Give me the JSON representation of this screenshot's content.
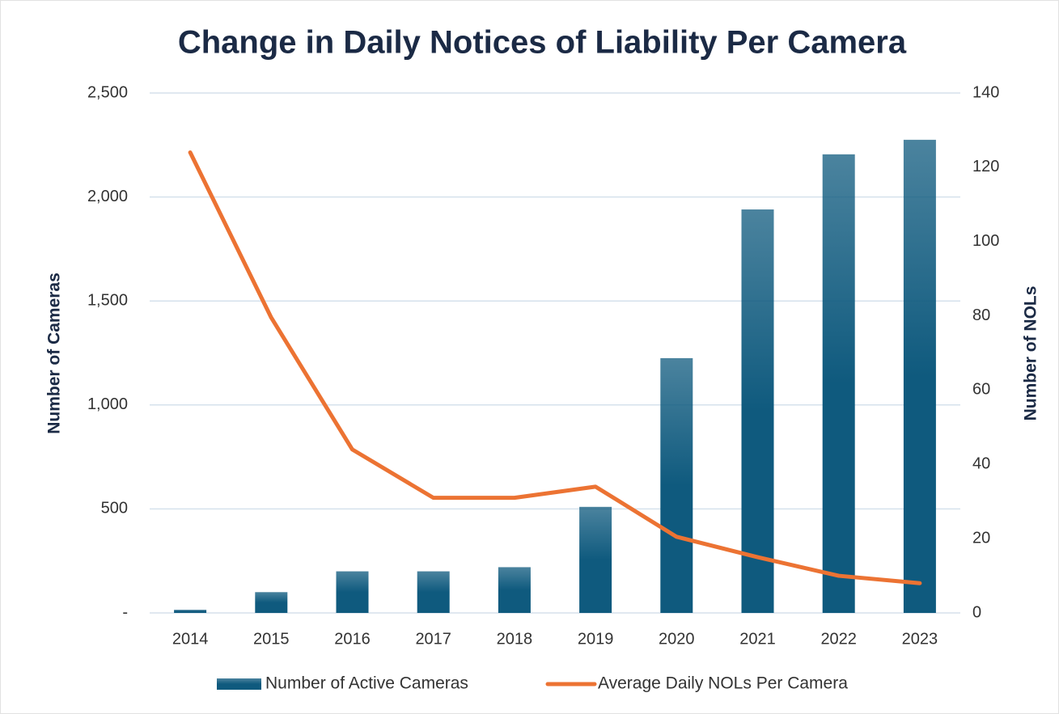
{
  "chart_data": {
    "type": "bar",
    "title": "Change in Daily Notices of Liability Per Camera",
    "categories": [
      "2014",
      "2015",
      "2016",
      "2017",
      "2018",
      "2019",
      "2020",
      "2021",
      "2022",
      "2023"
    ],
    "series": [
      {
        "name": "Number of Active Cameras",
        "type": "bar",
        "color": "#0f5a7e",
        "values": [
          15,
          100,
          200,
          200,
          220,
          510,
          1225,
          1940,
          2205,
          2275
        ]
      },
      {
        "name": "Average Daily NOLs Per Camera",
        "type": "line",
        "axis": "y2",
        "color": "#ec7333",
        "values": [
          124,
          79.5,
          44,
          31,
          31,
          34,
          20.5,
          15,
          10,
          8
        ]
      }
    ],
    "y_label": "Number of Cameras",
    "y2_label": "Number of NOLs",
    "ylim": [
      0,
      2500
    ],
    "yticks": [
      {
        "value": 0,
        "label": "-"
      },
      500,
      {
        "value": 1000,
        "label": "1,000"
      },
      {
        "value": 1500,
        "label": "1,500"
      },
      {
        "value": 2000,
        "label": "2,000"
      },
      {
        "value": 2500,
        "label": "2,500"
      }
    ],
    "y2lim": [
      0,
      140
    ],
    "y2ticks": [
      0,
      20,
      40,
      60,
      80,
      100,
      120,
      140
    ],
    "grid": true,
    "legend": "bottom"
  }
}
